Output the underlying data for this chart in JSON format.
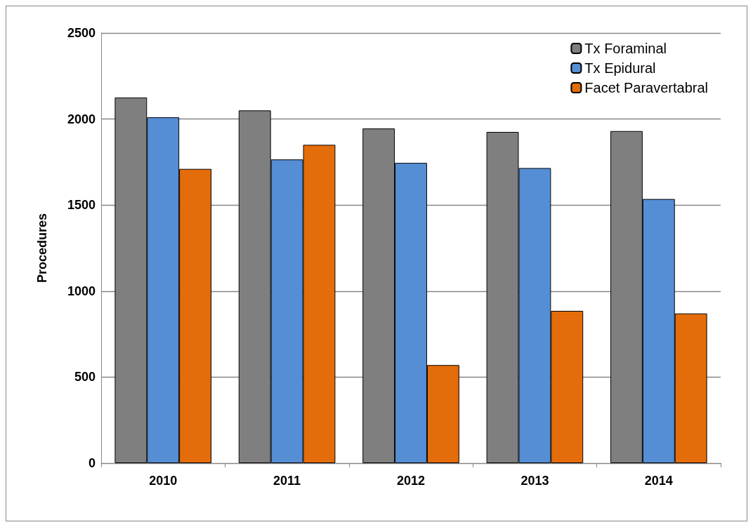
{
  "chart_data": {
    "type": "bar",
    "ylabel": "Procedures",
    "categories": [
      "2010",
      "2011",
      "2012",
      "2013",
      "2014"
    ],
    "series": [
      {
        "name": "Tx Foraminal",
        "color": "#7f7f7f",
        "values": [
          2125,
          2050,
          1945,
          1925,
          1930
        ]
      },
      {
        "name": "Tx Epidural",
        "color": "#558ed5",
        "values": [
          2010,
          1765,
          1745,
          1715,
          1535
        ]
      },
      {
        "name": "Facet Paravertabral",
        "color": "#e46c0a",
        "values": [
          1710,
          1850,
          570,
          885,
          870
        ]
      }
    ],
    "ylim": [
      0,
      2500
    ],
    "yticks": [
      0,
      500,
      1000,
      1500,
      2000,
      2500
    ],
    "grid": "y",
    "legend": "top right"
  }
}
